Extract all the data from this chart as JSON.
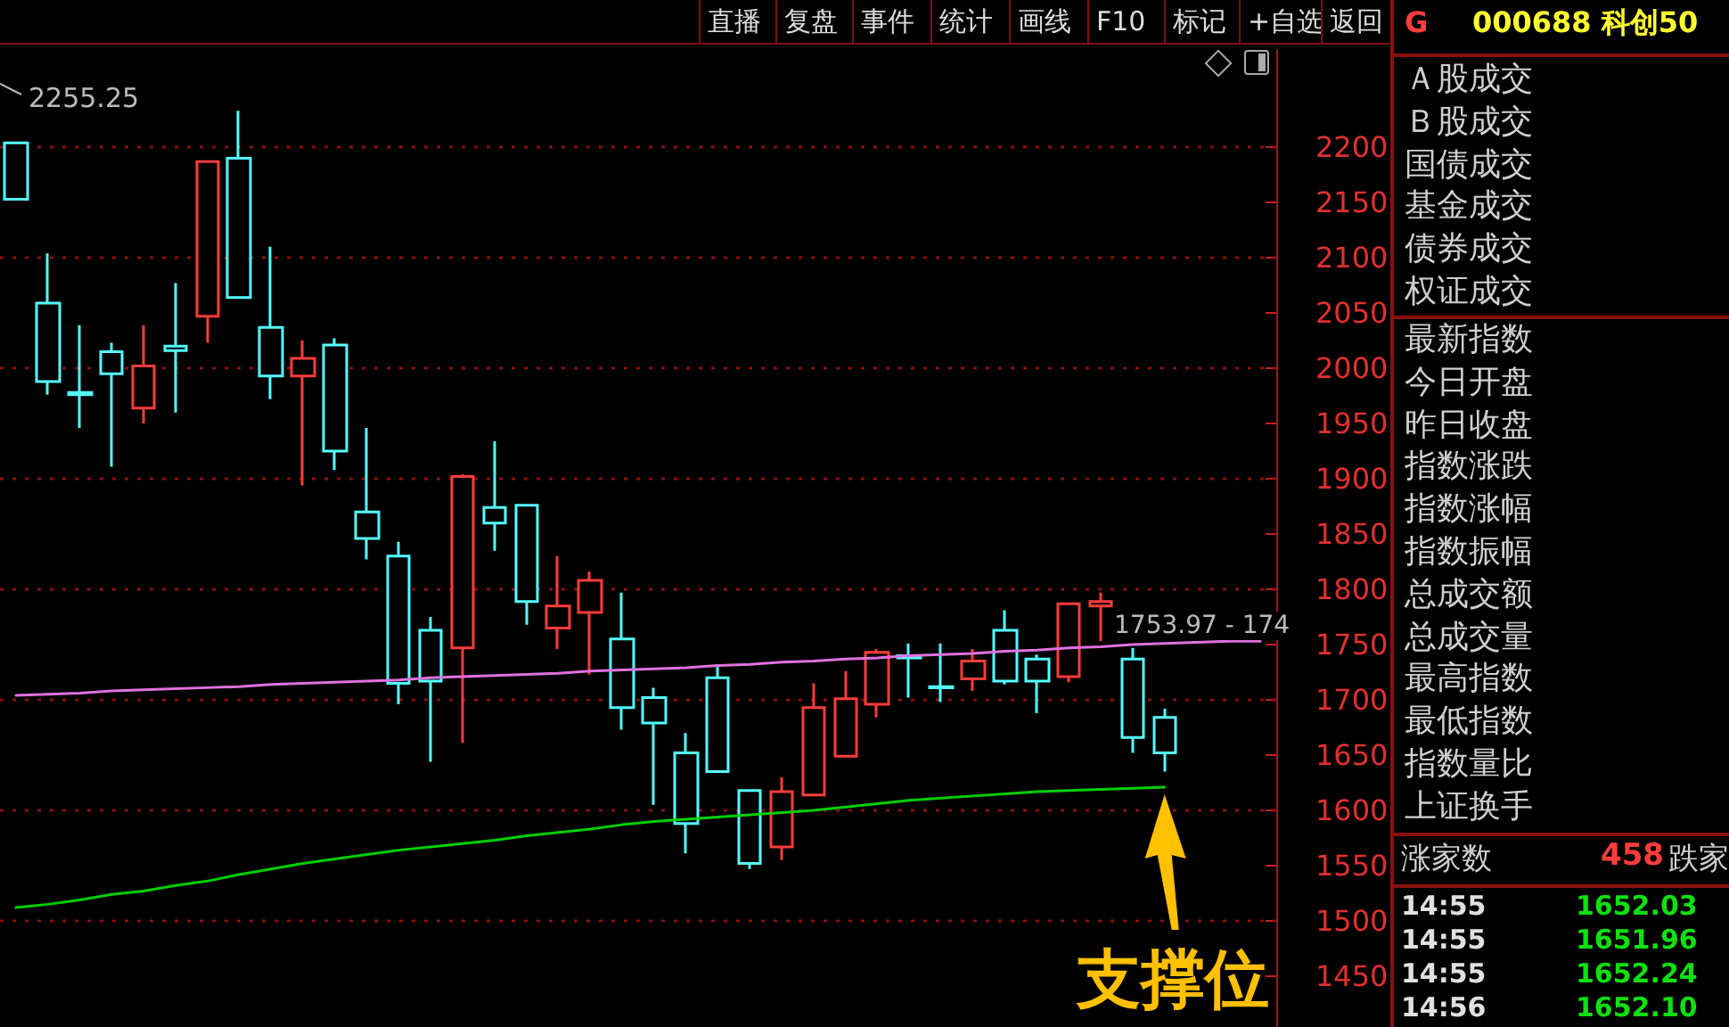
{
  "chart_data": [
    {
      "type": "candlestick",
      "categories": [
        null,
        null,
        null,
        null,
        null,
        null,
        null,
        null,
        null,
        null,
        null,
        null,
        null,
        null,
        null,
        null,
        null,
        null,
        null,
        null,
        null,
        null,
        null,
        null,
        null,
        null,
        null,
        null,
        null,
        null,
        null,
        null,
        null,
        null,
        null,
        null,
        null,
        null,
        null,
        null
      ],
      "ohlc": [
        [
          2204,
          2204,
          2153,
          2153
        ],
        [
          2059,
          2104,
          1976,
          1988
        ],
        [
          1978,
          2039,
          1946,
          1976
        ],
        [
          2015,
          2023,
          1911,
          1995
        ],
        [
          1964,
          2039,
          1950,
          2002
        ],
        [
          2020,
          2077,
          1960,
          2016
        ],
        [
          2047,
          2188,
          2023,
          2187
        ],
        [
          2190,
          2233,
          2063,
          2064
        ],
        [
          2037,
          2110,
          1972,
          1993
        ],
        [
          1993,
          2025,
          1894,
          2009
        ],
        [
          2021,
          2027,
          1908,
          1925
        ],
        [
          1870,
          1946,
          1827,
          1846
        ],
        [
          1830,
          1843,
          1696,
          1715
        ],
        [
          1763,
          1775,
          1644,
          1717
        ],
        [
          1747,
          1904,
          1661,
          1902
        ],
        [
          1874,
          1934,
          1835,
          1860
        ],
        [
          1876,
          1876,
          1768,
          1789
        ],
        [
          1765,
          1830,
          1746,
          1785
        ],
        [
          1779,
          1816,
          1723,
          1808
        ],
        [
          1755,
          1797,
          1673,
          1693
        ],
        [
          1702,
          1711,
          1605,
          1679
        ],
        [
          1652,
          1670,
          1561,
          1588
        ],
        [
          1720,
          1731,
          1635,
          1635
        ],
        [
          1618,
          1619,
          1547,
          1552
        ],
        [
          1567,
          1630,
          1555,
          1617
        ],
        [
          1614,
          1715,
          1614,
          1693
        ],
        [
          1649,
          1726,
          1649,
          1701
        ],
        [
          1696,
          1746,
          1684,
          1743
        ],
        [
          1740,
          1751,
          1702,
          1738
        ],
        [
          1712,
          1751,
          1698,
          1711
        ],
        [
          1719,
          1746,
          1708,
          1735
        ],
        [
          1763,
          1781,
          1714,
          1717
        ],
        [
          1737,
          1741,
          1688,
          1717
        ],
        [
          1721,
          1787,
          1716,
          1787
        ],
        [
          1785,
          1797,
          1753,
          1789
        ],
        [
          1737,
          1747,
          1652,
          1666
        ],
        [
          1684,
          1692,
          1635,
          1652
        ],
        null,
        null,
        null
      ],
      "colors": [
        "#54ffff",
        "#54ffff",
        "#54ffff",
        "#54ffff",
        "#ff3c3c",
        "#54ffff",
        "#ff3c3c",
        "#54ffff",
        "#54ffff",
        "#ff3c3c",
        "#54ffff",
        "#54ffff",
        "#54ffff",
        "#54ffff",
        "#ff3c3c",
        "#54ffff",
        "#54ffff",
        "#ff3c3c",
        "#ff3c3c",
        "#54ffff",
        "#54ffff",
        "#54ffff",
        "#54ffff",
        "#54ffff",
        "#ff3c3c",
        "#ff3c3c",
        "#ff3c3c",
        "#ff3c3c",
        "#54ffff",
        "#54ffff",
        "#ff3c3c",
        "#54ffff",
        "#54ffff",
        "#ff3c3c",
        "#ff3c3c",
        "#54ffff",
        "#54ffff",
        null,
        null,
        null
      ],
      "series": [
        {
          "type": "line",
          "color": "#e070e0",
          "values": [
            1704,
            1705,
            1706,
            1708,
            1709,
            1710,
            1711,
            1712,
            1714,
            1715,
            1716,
            1717,
            1718,
            1720,
            1721,
            1722,
            1723,
            1724,
            1726,
            1727,
            1728,
            1729,
            1731,
            1732,
            1734,
            1735,
            1737,
            1738,
            1740,
            1741,
            1742,
            1744,
            1745,
            1747,
            1748,
            1750,
            1751,
            1752,
            1753,
            1753
          ]
        },
        {
          "type": "line",
          "color": "#00d000",
          "values": [
            1512,
            1515,
            1519,
            1524,
            1527,
            1532,
            1536,
            1542,
            1547,
            1552,
            1556,
            1560,
            1564,
            1567,
            1570,
            1573,
            1577,
            1580,
            1583,
            1587,
            1590,
            1592,
            1594,
            1596,
            1598,
            1600,
            1603,
            1606,
            1609,
            1611,
            1613,
            1615,
            1617,
            1618,
            1619,
            1620,
            1621,
            null,
            null,
            null
          ]
        }
      ],
      "ylim": [
        1404,
        2288
      ],
      "yticks": [
        1450,
        1500,
        1550,
        1600,
        1650,
        1700,
        1750,
        1800,
        1850,
        1900,
        1950,
        2000,
        2050,
        2100,
        2150,
        2200
      ],
      "grid": "y",
      "tick_labels": "y",
      "annotations": [
        "2255.25",
        "1753.97 - 174",
        "支撑位"
      ]
    },
    {
      "type": "other",
      "annotations": [
        "直播",
        "复盘",
        "事件",
        "统计",
        "画线",
        "F10",
        "标记",
        "+自选",
        "返回"
      ]
    },
    {
      "type": "other",
      "title": "000688 科创50",
      "subtitle": "G",
      "annotations": [
        "Ａ股成交",
        "Ｂ股成交",
        "国债成交",
        "基金成交",
        "债券成交",
        "权证成交",
        "最新指数",
        "今日开盘",
        "昨日收盘",
        "指数涨跌",
        "指数涨幅",
        "指数振幅",
        "总成交额",
        "总成交量",
        "最高指数",
        "最低指数",
        "指数量比",
        "上证换手",
        "涨家数",
        "458",
        "跌家",
        "14:55",
        "1652.03",
        "14:55",
        "1651.96",
        "14:55",
        "1652.24",
        "14:56",
        "1652.10"
      ]
    }
  ]
}
